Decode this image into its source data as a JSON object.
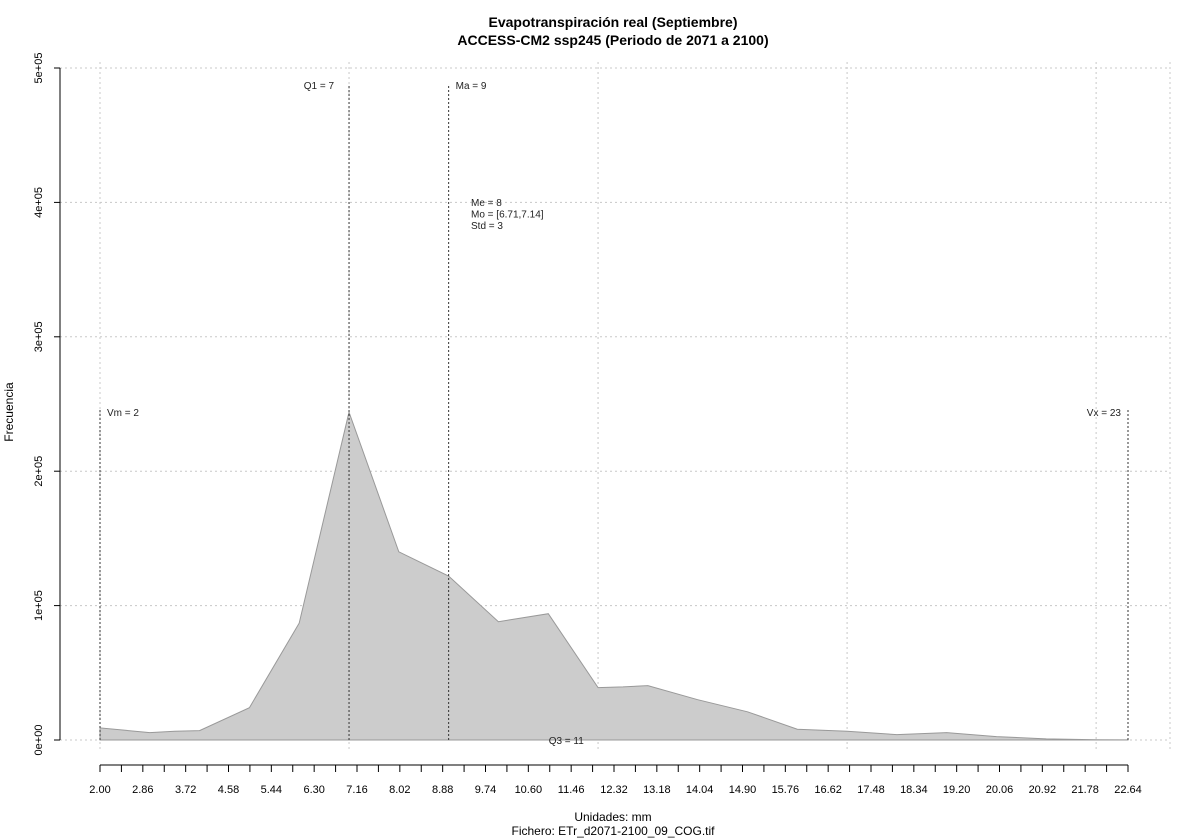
{
  "chart_data": {
    "type": "area",
    "title": "Evapotranspiración real (Septiembre)",
    "subtitle": "ACCESS-CM2 ssp245 (Periodo de 2071 a 2100)",
    "xlabel": "Unidades: mm",
    "ylabel": "Frecuencia",
    "caption": "Fichero: ETr_d2071-2100_09_COG.tif",
    "xlim": [
      2,
      22.64
    ],
    "ylim": [
      0,
      500000
    ],
    "x_ticks": [
      "2.00",
      "2.86",
      "3.72",
      "4.58",
      "5.44",
      "6.30",
      "7.16",
      "8.02",
      "8.88",
      "9.74",
      "10.60",
      "11.46",
      "12.32",
      "13.18",
      "14.04",
      "14.90",
      "15.76",
      "16.62",
      "17.48",
      "18.34",
      "19.20",
      "20.06",
      "20.92",
      "21.78",
      "22.64"
    ],
    "y_ticks": [
      {
        "value": 0,
        "label": "0e+00"
      },
      {
        "value": 100000,
        "label": "1e+05"
      },
      {
        "value": 200000,
        "label": "2e+05"
      },
      {
        "value": 300000,
        "label": "3e+05"
      },
      {
        "value": 400000,
        "label": "4e+05"
      },
      {
        "value": 500000,
        "label": "5e+05"
      }
    ],
    "grid": true,
    "fill_color": "#cccccc",
    "line_color": "#999999",
    "series": [
      {
        "x": [
          2,
          3,
          3.5,
          4,
          5,
          6,
          7,
          8,
          9,
          10,
          11,
          12,
          12.5,
          13,
          14,
          15,
          16,
          17,
          18,
          19,
          20,
          21,
          22,
          22.64
        ],
        "y": [
          9000,
          5500,
          6500,
          7000,
          24000,
          87000,
          244000,
          140000,
          122000,
          88000,
          94000,
          39000,
          39500,
          40500,
          30000,
          21000,
          8000,
          6500,
          4000,
          5500,
          2500,
          800,
          200,
          100
        ]
      }
    ],
    "annotations": {
      "vm": {
        "x": 2,
        "label": "Vm = 2"
      },
      "q1": {
        "x": 7,
        "label": "Q1 = 7"
      },
      "ma": {
        "x": 9,
        "label": "Ma = 9"
      },
      "q3": {
        "x": 11,
        "label": "Q3 = 11"
      },
      "vx": {
        "x": 23,
        "label": "Vx = 23"
      },
      "stats": [
        "Me = 8",
        "Mo = [6.71,7.14]",
        "Std = 3"
      ]
    }
  }
}
